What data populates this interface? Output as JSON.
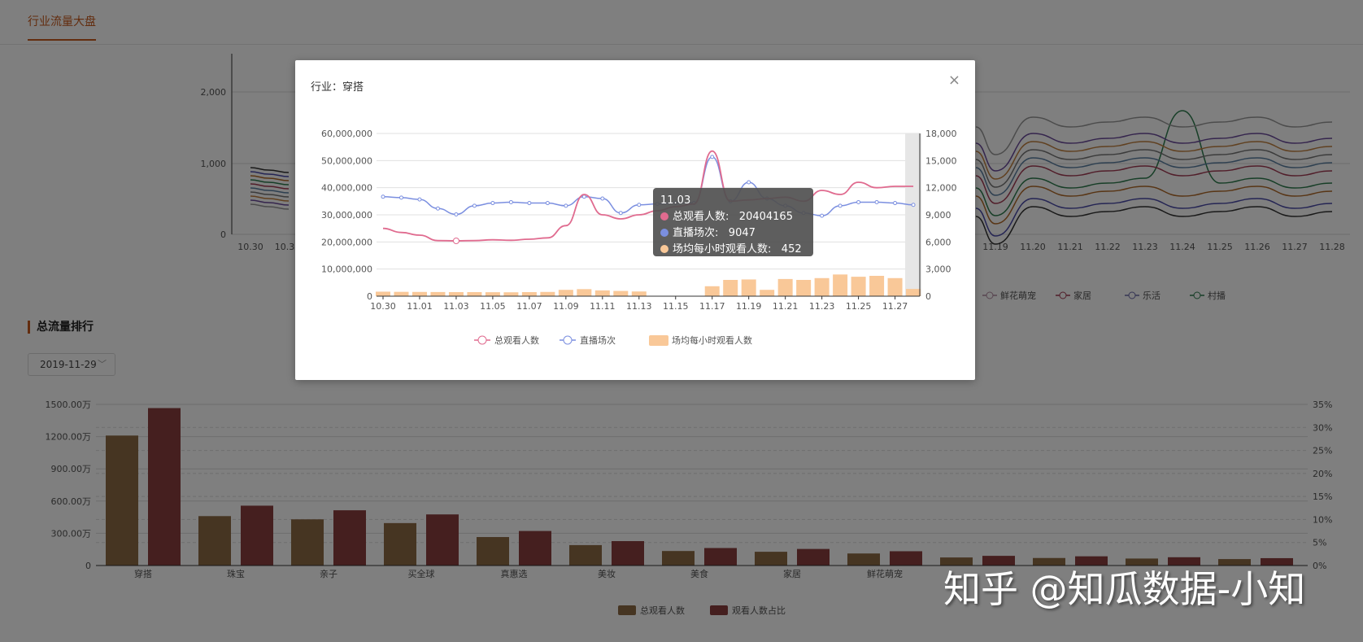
{
  "top_tab": {
    "label": "行业流量大盘"
  },
  "section": {
    "title": "总流量排行",
    "date": "2019-11-29"
  },
  "colors": {
    "accent": "#c75a1e",
    "pink": "#e06b8f",
    "blue": "#7b8fe0",
    "peach": "#f9c898",
    "bar1": "#8d6a45",
    "bar2": "#8a3f3f"
  },
  "bg_line_chart": {
    "y_ticks": [
      "2,000",
      "1,000",
      "0"
    ],
    "x_ticks": [
      "10.30",
      "10.3",
      "11.19",
      "11.20",
      "11.21",
      "11.22",
      "11.23",
      "11.24",
      "11.25",
      "11.26",
      "11.27",
      "11.28"
    ],
    "legend": [
      "鲜花萌宠",
      "家居",
      "乐活",
      "村播"
    ]
  },
  "rank_chart": {
    "type": "bar",
    "categories": [
      "穿搭",
      "珠宝",
      "亲子",
      "买全球",
      "真惠选",
      "美妆",
      "美食",
      "家居",
      "鲜花萌宠",
      "",
      "",
      "",
      ""
    ],
    "y_left_ticks": [
      "1500.00万",
      "1200.00万",
      "900.00万",
      "600.00万",
      "300.00万",
      "0"
    ],
    "y_right_ticks": [
      "35%",
      "30%",
      "25%",
      "20%",
      "15%",
      "10%",
      "5%",
      "0%"
    ],
    "series": [
      {
        "name": "总观看人数",
        "values": [
          1210,
          460,
          430,
          395,
          265,
          190,
          135,
          128,
          112,
          75,
          70,
          65,
          60
        ]
      },
      {
        "name": "观看人数占比",
        "values": [
          34.2,
          13.0,
          12.0,
          11.1,
          7.5,
          5.3,
          3.8,
          3.6,
          3.1,
          2.1,
          2.0,
          1.8,
          1.6
        ]
      }
    ]
  },
  "modal": {
    "title": "行业：穿搭",
    "close": "×",
    "chart_data": {
      "type": "line",
      "x": [
        "10.30",
        "10.31",
        "11.01",
        "11.02",
        "11.03",
        "11.04",
        "11.05",
        "11.06",
        "11.07",
        "11.08",
        "11.09",
        "11.10",
        "11.11",
        "11.12",
        "11.13",
        "11.14",
        "11.15",
        "11.16",
        "11.17",
        "11.18",
        "11.19",
        "11.20",
        "11.21",
        "11.22",
        "11.23",
        "11.24",
        "11.25",
        "11.26",
        "11.27",
        "11.28"
      ],
      "x_ticks": [
        "10.30",
        "11.01",
        "11.03",
        "11.05",
        "11.07",
        "11.09",
        "11.11",
        "11.13",
        "11.15",
        "11.17",
        "11.19",
        "11.21",
        "11.23",
        "11.25",
        "11.27"
      ],
      "y_left_ticks": [
        "60,000,000",
        "50,000,000",
        "40,000,000",
        "30,000,000",
        "20,000,000",
        "10,000,000",
        "0"
      ],
      "y_right_ticks": [
        "18,000",
        "15,000",
        "12,000",
        "9,000",
        "6,000",
        "3,000",
        "0"
      ],
      "ylim_left": [
        0,
        60000000
      ],
      "ylim_right": [
        0,
        18000
      ],
      "series": [
        {
          "name": "总观看人数",
          "axis": "left",
          "type": "line",
          "values": [
            25000000,
            23500000,
            22500000,
            20500000,
            20404165,
            20500000,
            20800000,
            20600000,
            21000000,
            21500000,
            26000000,
            37500000,
            30000000,
            28500000,
            30000000,
            31500000,
            33000000,
            34000000,
            53500000,
            35000000,
            35500000,
            36000000,
            36500000,
            35000000,
            39000000,
            37500000,
            42000000,
            40000000,
            40500000,
            40500000
          ]
        },
        {
          "name": "直播场次",
          "axis": "right",
          "type": "line",
          "values": [
            11000,
            10900,
            10700,
            9700,
            9047,
            10000,
            10300,
            10400,
            10300,
            10300,
            10000,
            11000,
            10800,
            9200,
            10100,
            10200,
            10300,
            10300,
            15400,
            10500,
            12600,
            10800,
            10000,
            9200,
            8900,
            10000,
            10400,
            10400,
            10300,
            10100
          ]
        },
        {
          "name": "场均每小时观看人数",
          "axis": "right",
          "type": "bar",
          "values": [
            500,
            480,
            470,
            460,
            452,
            450,
            440,
            430,
            450,
            470,
            700,
            780,
            640,
            580,
            520,
            0,
            0,
            0,
            1100,
            1800,
            1850,
            700,
            1900,
            1800,
            2000,
            2400,
            2150,
            2250,
            2000,
            800
          ]
        }
      ]
    },
    "tooltip": {
      "date": "11.03",
      "rows": [
        {
          "label": "总观看人数:",
          "value": "20404165",
          "color": "#e06b8f"
        },
        {
          "label": "直播场次:",
          "value": "9047",
          "color": "#7b8fe0"
        },
        {
          "label": "场均每小时观看人数:",
          "value": "452",
          "color": "#f9c898"
        }
      ]
    }
  },
  "watermark": "知乎 @知瓜数据-小知"
}
